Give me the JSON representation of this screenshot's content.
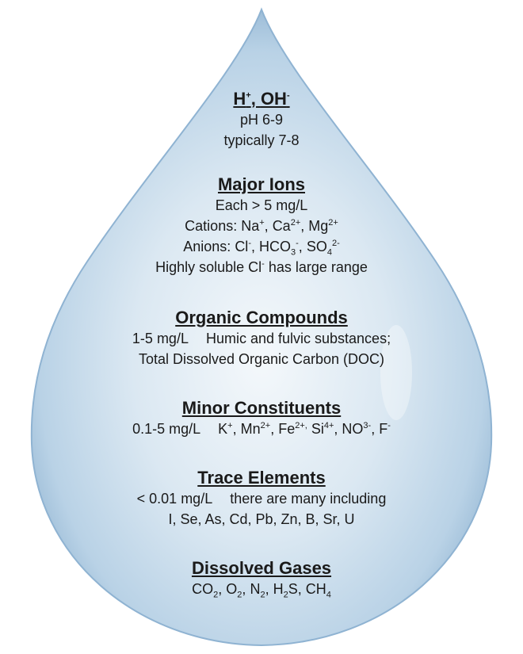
{
  "sections": {
    "ph": {
      "heading": {
        "a": "H",
        "a_sup": "+",
        "sep": ", ",
        "b": "OH",
        "b_sup": "-"
      },
      "range": "pH 6-9",
      "typical": "typically 7-8"
    },
    "major_ions": {
      "heading": "Major Ions",
      "threshold": "Each > 5 mg/L",
      "cations": {
        "prefix": "Cations: ",
        "na": "Na",
        "na_sup": "+",
        "ca": "Ca",
        "ca_sup": "2+",
        "mg": "Mg",
        "mg_sup": "2+"
      },
      "anions": {
        "prefix": "Anions: ",
        "cl": "Cl",
        "cl_sup": "-",
        "hco": "HCO",
        "hco_sub": "3",
        "hco_sup": "-",
        "so": "SO",
        "so_sub": "4",
        "so_sup": "2-"
      },
      "note": {
        "pre": "Highly soluble Cl",
        "sup": "-",
        "post": " has large range"
      }
    },
    "organic": {
      "heading": "Organic Compounds",
      "conc": "1-5 mg/L",
      "desc": "Humic and fulvic substances;",
      "doc": "Total Dissolved Organic Carbon (DOC)"
    },
    "minor": {
      "heading": "Minor Constituents",
      "conc": "0.1-5 mg/L",
      "k": "K",
      "k_sup": "+",
      "mn": "Mn",
      "mn_sup": "2+",
      "fe": "Fe",
      "fe_sup": "2+,",
      "si": "Si",
      "si_sup": "4+",
      "no": "NO",
      "no_sup": "3-",
      "f": "F",
      "f_sup": "-"
    },
    "trace": {
      "heading": "Trace Elements",
      "conc": "< 0.01 mg/L",
      "desc": "there are many including",
      "elements": "I, Se, As, Cd, Pb, Zn, B, Sr, U"
    },
    "gases": {
      "heading": "Dissolved Gases",
      "co": "CO",
      "co_sub": "2",
      "o": "O",
      "o_sub": "2",
      "n": "N",
      "n_sub": "2",
      "h": "H",
      "h_sub": "2",
      "s": "S",
      "ch": "CH",
      "ch_sub": "4"
    }
  },
  "colors": {
    "drop_edge": "#7fa7c9",
    "drop_mid": "#b9d2e6",
    "drop_highlight": "#f4f8fb",
    "text": "#1a1a1a"
  }
}
